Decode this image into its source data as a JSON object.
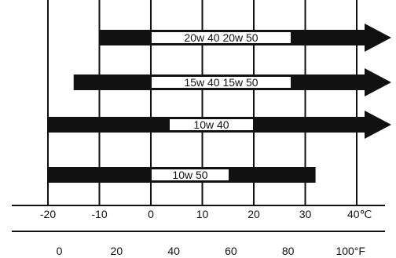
{
  "chart_data": {
    "type": "bar",
    "subtype": "temperature-range",
    "title": "",
    "xlabel": "",
    "ylabel": "",
    "celsius_axis": {
      "ticks": [
        -20,
        -10,
        0,
        10,
        20,
        30,
        40
      ],
      "tick_labels": [
        "-20",
        "-10",
        "0",
        "10",
        "20",
        "30",
        "40℃"
      ],
      "range": [
        -20,
        40
      ]
    },
    "fahrenheit_axis": {
      "ticks": [
        0,
        20,
        40,
        60,
        80,
        100
      ],
      "tick_labels": [
        "0",
        "20",
        "40",
        "60",
        "80",
        "100°F"
      ]
    },
    "grid": "vertical lines at every 10 °C",
    "series": [
      {
        "label": "20w 40 20w 50",
        "min_c": -10,
        "max_c": 40,
        "open_ended": true
      },
      {
        "label": "15w 40 15w 50",
        "min_c": -15,
        "max_c": 40,
        "open_ended": true
      },
      {
        "label": "10w 40",
        "min_c": -20,
        "max_c": 40,
        "open_ended": true
      },
      {
        "label": "10w 50",
        "min_c": -20,
        "max_c": 32,
        "open_ended": false
      }
    ],
    "colors": {
      "bar": "#111111",
      "grid": "#111111",
      "label_box": "#ffffff"
    }
  }
}
